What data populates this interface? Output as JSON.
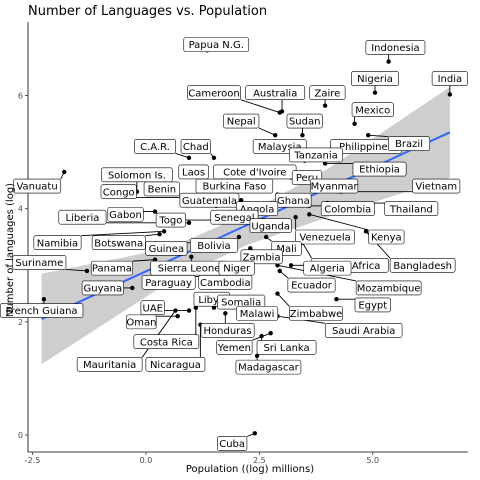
{
  "chart_data": {
    "type": "scatter",
    "title": "Number of Languages vs. Population",
    "xlabel": "Population ((log) millions)",
    "ylabel": "Number of languages (log)",
    "xlim": [
      -2.6,
      7.1
    ],
    "ylim": [
      -0.3,
      7.3
    ],
    "xticks": [
      {
        "value": -2.5,
        "label": "-2.5"
      },
      {
        "value": 0.0,
        "label": "0.0"
      },
      {
        "value": 2.5,
        "label": "2.5"
      },
      {
        "value": 5.0,
        "label": "5.0"
      }
    ],
    "yticks": [
      {
        "value": 0,
        "label": "0"
      },
      {
        "value": 2,
        "label": "2"
      },
      {
        "value": 4,
        "label": "4"
      },
      {
        "value": 6,
        "label": "6"
      }
    ],
    "grid": false,
    "legend": "none",
    "colors": {
      "trend_line": "#3366ff",
      "ribbon": "#bdbdbd",
      "point": "#000000"
    },
    "trend_line": {
      "x": [
        -2.3,
        6.7
      ],
      "y": [
        2.05,
        5.35
      ]
    },
    "confidence_band": {
      "x": [
        -2.3,
        0.5,
        2.2,
        4.0,
        6.7
      ],
      "lower": [
        1.25,
        2.7,
        3.35,
        3.85,
        4.55
      ],
      "upper": [
        2.85,
        3.3,
        3.9,
        4.7,
        6.15
      ]
    },
    "points": [
      {
        "label": "Papua N.G.",
        "x": 1.35,
        "y": 6.8,
        "lx": 1.55,
        "ly": 6.9
      },
      {
        "label": "Indonesia",
        "x": 5.35,
        "y": 6.6,
        "lx": 5.5,
        "ly": 6.85
      },
      {
        "label": "India",
        "x": 6.7,
        "y": 6.02,
        "lx": 6.7,
        "ly": 6.3
      },
      {
        "label": "Nigeria",
        "x": 5.05,
        "y": 6.05,
        "lx": 5.05,
        "ly": 6.3
      },
      {
        "label": "Cameroon",
        "x": 2.95,
        "y": 5.7,
        "lx": 1.5,
        "ly": 6.05
      },
      {
        "label": "Australia",
        "x": 3.0,
        "y": 5.72,
        "lx": 2.85,
        "ly": 6.05
      },
      {
        "label": "Zaire",
        "x": 3.95,
        "y": 5.82,
        "lx": 4.0,
        "ly": 6.05
      },
      {
        "label": "Mexico",
        "x": 4.6,
        "y": 5.5,
        "lx": 5.0,
        "ly": 5.75
      },
      {
        "label": "Nepal",
        "x": 2.85,
        "y": 5.3,
        "lx": 2.1,
        "ly": 5.55
      },
      {
        "label": "Sudan",
        "x": 3.45,
        "y": 5.3,
        "lx": 3.5,
        "ly": 5.55
      },
      {
        "label": "Malaysia",
        "x": 2.95,
        "y": 5.05,
        "lx": 2.95,
        "ly": 5.1
      },
      {
        "label": "Philippines",
        "x": 4.4,
        "y": 5.1,
        "lx": 4.85,
        "ly": 5.1
      },
      {
        "label": "Brazil",
        "x": 4.9,
        "y": 5.3,
        "lx": 5.8,
        "ly": 5.15
      },
      {
        "label": "C.A.R.",
        "x": 0.95,
        "y": 4.9,
        "lx": 0.2,
        "ly": 5.1
      },
      {
        "label": "Chad",
        "x": 1.5,
        "y": 4.9,
        "lx": 1.1,
        "ly": 5.1
      },
      {
        "label": "Tanzania",
        "x": 3.5,
        "y": 4.85,
        "lx": 3.75,
        "ly": 4.95
      },
      {
        "label": "Cote d'Ivoire",
        "x": 2.45,
        "y": 4.55,
        "lx": 2.4,
        "ly": 4.65
      },
      {
        "label": "Ethiopia",
        "x": 3.95,
        "y": 4.8,
        "lx": 5.15,
        "ly": 4.7
      },
      {
        "label": "Vanuatu",
        "x": -1.8,
        "y": 4.65,
        "lx": -2.4,
        "ly": 4.4
      },
      {
        "label": "Solomon Is.",
        "x": -0.2,
        "y": 4.3,
        "lx": -0.2,
        "ly": 4.6
      },
      {
        "label": "Laos",
        "x": 1.55,
        "y": 4.4,
        "lx": 1.05,
        "ly": 4.65
      },
      {
        "label": "Peru",
        "x": 3.2,
        "y": 4.55,
        "lx": 3.55,
        "ly": 4.55
      },
      {
        "label": "Burkina Faso",
        "x": 1.95,
        "y": 4.25,
        "lx": 1.95,
        "ly": 4.4
      },
      {
        "label": "Myanmar",
        "x": 3.75,
        "y": 4.4,
        "lx": 4.15,
        "ly": 4.4
      },
      {
        "label": "Vietnam",
        "x": 4.3,
        "y": 4.3,
        "lx": 6.4,
        "ly": 4.4
      },
      {
        "label": "Congo",
        "x": 0.95,
        "y": 4.2,
        "lx": -0.6,
        "ly": 4.3
      },
      {
        "label": "Benin",
        "x": 1.55,
        "y": 4.05,
        "lx": 0.35,
        "ly": 4.35
      },
      {
        "label": "Guatemala",
        "x": 2.1,
        "y": 4.15,
        "lx": 1.4,
        "ly": 4.15
      },
      {
        "label": "Ghana",
        "x": 2.9,
        "y": 4.25,
        "lx": 3.25,
        "ly": 4.15
      },
      {
        "label": "Angola",
        "x": 2.4,
        "y": 3.95,
        "lx": 2.45,
        "ly": 4.0
      },
      {
        "label": "Colombia",
        "x": 3.6,
        "y": 4.05,
        "lx": 4.45,
        "ly": 4.0
      },
      {
        "label": "Thailand",
        "x": 4.0,
        "y": 4.1,
        "lx": 5.85,
        "ly": 4.0
      },
      {
        "label": "Gabon",
        "x": 0.2,
        "y": 3.95,
        "lx": -0.45,
        "ly": 3.9
      },
      {
        "label": "Liberia",
        "x": 0.95,
        "y": 3.75,
        "lx": -1.4,
        "ly": 3.85
      },
      {
        "label": "Togo",
        "x": 1.5,
        "y": 3.8,
        "lx": 0.55,
        "ly": 3.8
      },
      {
        "label": "Senegal",
        "x": 2.45,
        "y": 3.8,
        "lx": 1.95,
        "ly": 3.85
      },
      {
        "label": "Uganda",
        "x": 3.1,
        "y": 3.75,
        "lx": 2.75,
        "ly": 3.7
      },
      {
        "label": "Venezuela",
        "x": 3.3,
        "y": 3.85,
        "lx": 3.95,
        "ly": 3.5
      },
      {
        "label": "Kenya",
        "x": 3.6,
        "y": 3.9,
        "lx": 5.3,
        "ly": 3.5
      },
      {
        "label": "Namibia",
        "x": 0.4,
        "y": 3.6,
        "lx": -1.95,
        "ly": 3.4
      },
      {
        "label": "Botswana",
        "x": 0.3,
        "y": 3.55,
        "lx": -0.6,
        "ly": 3.4
      },
      {
        "label": "Guinea",
        "x": 1.75,
        "y": 3.4,
        "lx": 0.45,
        "ly": 3.3
      },
      {
        "label": "Bolivia",
        "x": 2.05,
        "y": 3.5,
        "lx": 1.5,
        "ly": 3.35
      },
      {
        "label": "Mali",
        "x": 2.65,
        "y": 3.5,
        "lx": 3.1,
        "ly": 3.3
      },
      {
        "label": "Zambia",
        "x": 2.3,
        "y": 3.3,
        "lx": 2.55,
        "ly": 3.15
      },
      {
        "label": "South Africa",
        "x": 3.45,
        "y": 3.4,
        "lx": 4.5,
        "ly": 3.0
      },
      {
        "label": "Bangladesh",
        "x": 4.85,
        "y": 3.6,
        "lx": 6.1,
        "ly": 3.0
      },
      {
        "label": "Panama",
        "x": 0.2,
        "y": 3.1,
        "lx": -0.75,
        "ly": 2.95
      },
      {
        "label": "Sierra Leone",
        "x": 1.0,
        "y": 3.15,
        "lx": 0.95,
        "ly": 2.95
      },
      {
        "label": "Niger",
        "x": 2.15,
        "y": 3.1,
        "lx": 2.0,
        "ly": 2.95
      },
      {
        "label": "Algeria",
        "x": 3.2,
        "y": 3.0,
        "lx": 4.0,
        "ly": 2.95
      },
      {
        "label": "Mozambique",
        "x": 2.9,
        "y": 3.0,
        "lx": 5.35,
        "ly": 2.6
      },
      {
        "label": "Suriname",
        "x": -1.3,
        "y": 2.9,
        "lx": -2.35,
        "ly": 3.05
      },
      {
        "label": "Guyana",
        "x": -0.3,
        "y": 2.6,
        "lx": -0.95,
        "ly": 2.6
      },
      {
        "label": "Paraguay",
        "x": 1.5,
        "y": 2.8,
        "lx": 0.5,
        "ly": 2.7
      },
      {
        "label": "Cambodia",
        "x": 2.25,
        "y": 2.85,
        "lx": 1.75,
        "ly": 2.7
      },
      {
        "label": "Ecuador",
        "x": 2.95,
        "y": 2.9,
        "lx": 3.65,
        "ly": 2.65
      },
      {
        "label": "Egypt",
        "x": 4.2,
        "y": 2.4,
        "lx": 5.0,
        "ly": 2.3
      },
      {
        "label": "French Guiana",
        "x": -2.25,
        "y": 2.4,
        "lx": -2.3,
        "ly": 2.2
      },
      {
        "label": "UAE",
        "x": 0.95,
        "y": 2.2,
        "lx": 0.15,
        "ly": 2.25
      },
      {
        "label": "Libya",
        "x": 1.5,
        "y": 2.25,
        "lx": 1.45,
        "ly": 2.4
      },
      {
        "label": "Somalia",
        "x": 2.1,
        "y": 2.3,
        "lx": 2.1,
        "ly": 2.35
      },
      {
        "label": "Malawi",
        "x": 2.3,
        "y": 2.2,
        "lx": 2.45,
        "ly": 2.15
      },
      {
        "label": "Zimbabwe",
        "x": 2.9,
        "y": 2.5,
        "lx": 3.75,
        "ly": 2.15
      },
      {
        "label": "Oman",
        "x": 0.7,
        "y": 2.1,
        "lx": -0.1,
        "ly": 2.0
      },
      {
        "label": "Honduras",
        "x": 1.75,
        "y": 2.15,
        "lx": 1.8,
        "ly": 1.85
      },
      {
        "label": "Saudi Arabia",
        "x": 2.9,
        "y": 2.1,
        "lx": 4.8,
        "ly": 1.85
      },
      {
        "label": "Costa Rica",
        "x": 1.1,
        "y": 2.25,
        "lx": 0.45,
        "ly": 1.65
      },
      {
        "label": "Yemen",
        "x": 2.75,
        "y": 1.8,
        "lx": 1.95,
        "ly": 1.55
      },
      {
        "label": "Sri Lanka",
        "x": 2.55,
        "y": 1.75,
        "lx": 3.1,
        "ly": 1.55
      },
      {
        "label": "Mauritania",
        "x": 0.65,
        "y": 2.2,
        "lx": -0.8,
        "ly": 1.25
      },
      {
        "label": "Nicaragua",
        "x": 1.2,
        "y": 1.95,
        "lx": 0.65,
        "ly": 1.25
      },
      {
        "label": "Madagascar",
        "x": 2.45,
        "y": 1.4,
        "lx": 2.7,
        "ly": 1.2
      },
      {
        "label": "Cuba",
        "x": 2.4,
        "y": 0.03,
        "lx": 1.9,
        "ly": -0.15
      }
    ]
  }
}
